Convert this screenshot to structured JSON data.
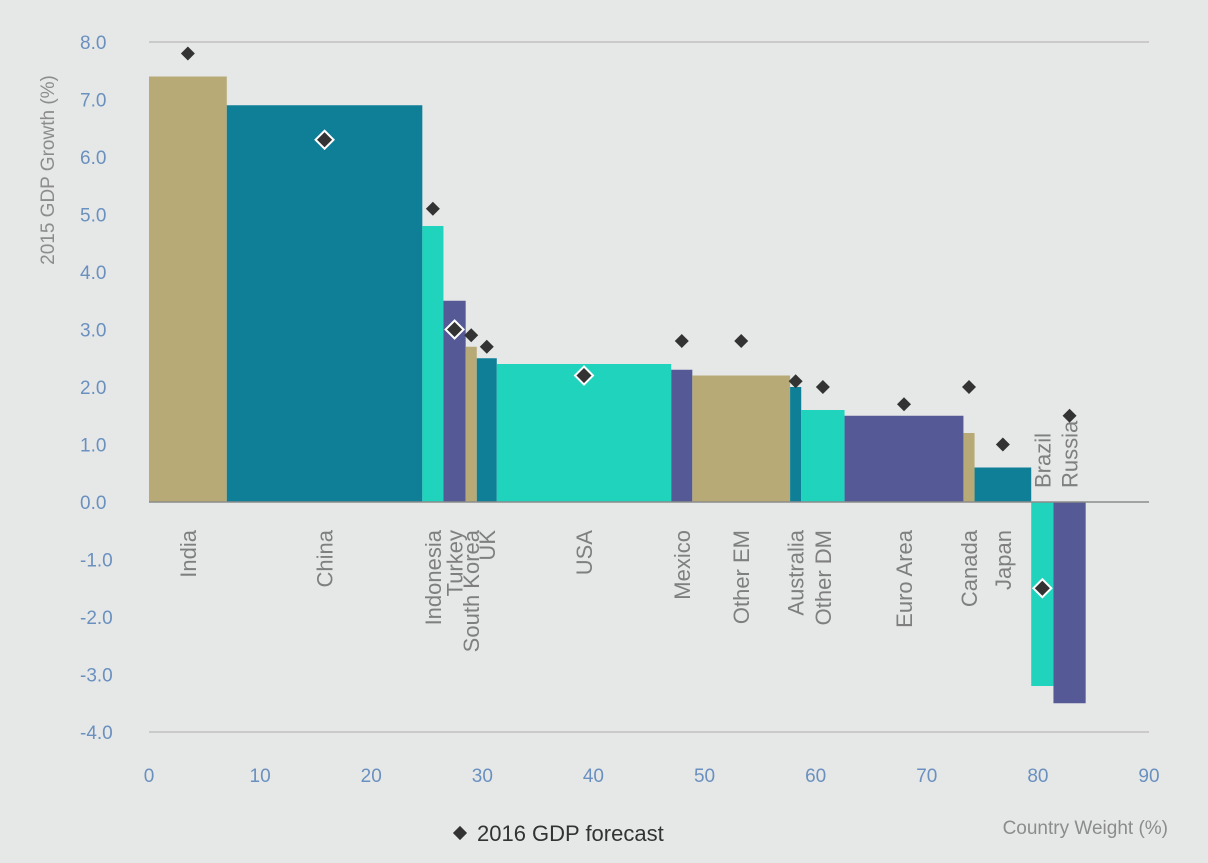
{
  "chart_data": {
    "type": "bar",
    "variant": "variable-width (marimekko-style) bars with diamond markers",
    "ylabel": "2015 GDP Growth (%)",
    "xlabel": "Country Weight (%)",
    "xlim": [
      0,
      90
    ],
    "ylim": [
      -4,
      8
    ],
    "x_ticks": [
      "0",
      "10",
      "20",
      "30",
      "40",
      "50",
      "60",
      "70",
      "80",
      "90"
    ],
    "y_ticks": [
      "8.0",
      "7.0",
      "6.0",
      "5.0",
      "4.0",
      "3.0",
      "2.0",
      "1.0",
      "0.0",
      "-1.0",
      "-2.0",
      "-3.0",
      "-4.0"
    ],
    "grid": "horizontal",
    "legend_position": "bottom",
    "legend_entry": "2016 GDP forecast",
    "colors": {
      "gold": "#b8aa76",
      "teal": "#0f7f97",
      "mint": "#1fd3bd",
      "purple": "#555a96",
      "marker": "#333333",
      "background": "#e6e8e8"
    },
    "categories": [
      "India",
      "China",
      "Indonesia",
      "Turkey",
      "South Korea",
      "UK",
      "USA",
      "Mexico",
      "Other EM",
      "Australia",
      "Other DM",
      "Euro Area",
      "Canada",
      "Japan",
      "Brazil",
      "Russia"
    ],
    "weights": [
      7.0,
      17.6,
      1.9,
      2.0,
      1.0,
      1.8,
      15.7,
      1.9,
      8.8,
      1.0,
      3.9,
      10.7,
      1.0,
      5.1,
      2.0,
      2.9
    ],
    "gdp_growth_2015": [
      7.4,
      6.9,
      4.8,
      3.5,
      2.7,
      2.5,
      2.4,
      2.3,
      2.2,
      2.0,
      1.6,
      1.5,
      1.2,
      0.6,
      -3.2,
      -3.5
    ],
    "forecast_2016": [
      7.8,
      6.3,
      5.1,
      3.0,
      2.9,
      2.7,
      2.2,
      2.8,
      2.8,
      2.1,
      2.0,
      1.7,
      2.0,
      1.0,
      -1.5,
      1.5
    ],
    "bar_colors": [
      "gold",
      "teal",
      "mint",
      "purple",
      "gold",
      "teal",
      "mint",
      "purple",
      "gold",
      "teal",
      "mint",
      "purple",
      "gold",
      "teal",
      "mint",
      "purple"
    ],
    "forecast_marker_style": [
      "dark",
      "outlined",
      "dark",
      "outlined",
      "dark",
      "dark",
      "outlined",
      "dark",
      "dark",
      "dark",
      "dark",
      "dark",
      "dark",
      "dark",
      "outlined",
      "dark"
    ]
  }
}
